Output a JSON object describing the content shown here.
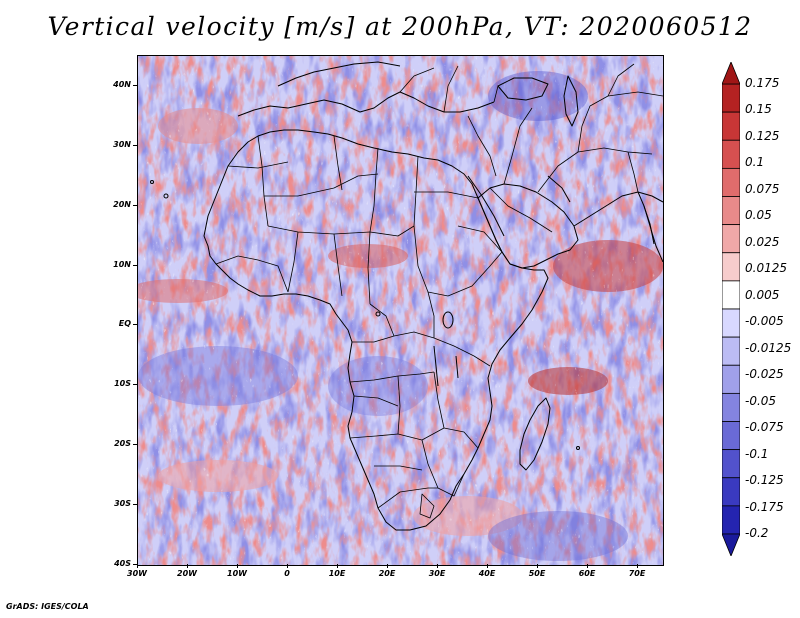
{
  "title": "Vertical velocity [m/s] at 200hPa, VT: 2020060512",
  "map": {
    "lat_labels": [
      "40N",
      "30N",
      "20N",
      "10N",
      "EQ",
      "10S",
      "20S",
      "30S",
      "40S"
    ],
    "lon_labels": [
      "30W",
      "20W",
      "10W",
      "0",
      "10E",
      "20E",
      "30E",
      "40E",
      "50E",
      "60E",
      "70E"
    ],
    "lat_range": [
      -40,
      45
    ],
    "lon_range": [
      -30,
      75
    ],
    "field": "vertical velocity",
    "features": [
      "country-borders",
      "coastlines"
    ]
  },
  "colorbar": {
    "levels": [
      "0.175",
      "0.15",
      "0.125",
      "0.1",
      "0.075",
      "0.05",
      "0.025",
      "0.0125",
      "0.005",
      "-0.005",
      "-0.0125",
      "-0.025",
      "-0.05",
      "-0.075",
      "-0.1",
      "-0.125",
      "-0.175",
      "-0.2"
    ],
    "colors": [
      "#a01616",
      "#b42222",
      "#c83636",
      "#d65050",
      "#e06c6c",
      "#e88a8a",
      "#f0a8a8",
      "#f7cccc",
      "#ffffff",
      "#d8d8ff",
      "#bcbcf4",
      "#a0a0ea",
      "#8484e0",
      "#6a6ad6",
      "#5252cc",
      "#3a3ac0",
      "#2424b0",
      "#1a1a9c"
    ]
  },
  "credit": "GrADS: IGES/COLA"
}
